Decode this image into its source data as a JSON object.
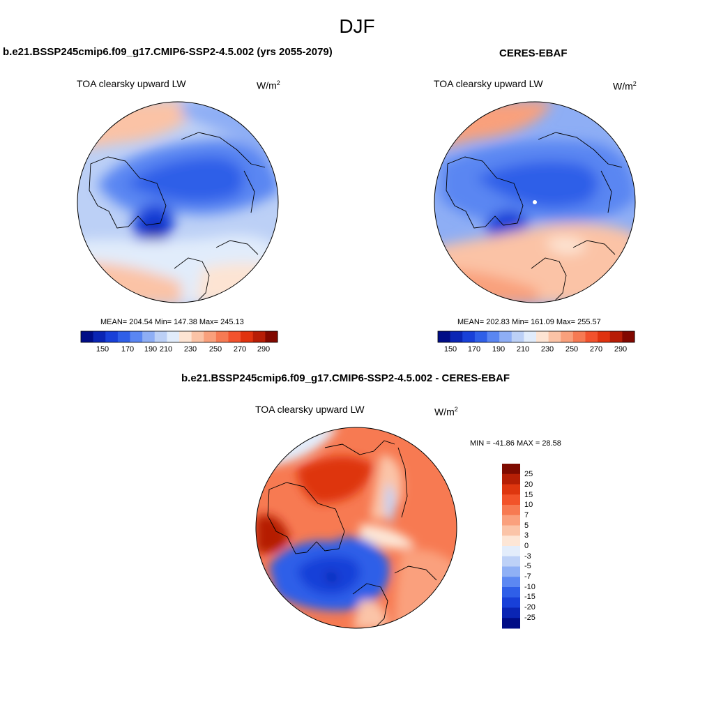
{
  "title": "DJF",
  "panels": {
    "model": {
      "title": "b.e21.BSSP245cmip6.f09_g17.CMIP6-SSP2-4.5.002 (yrs 2055-2079)",
      "variable": "TOA clearsky upward LW",
      "units": "W/m",
      "units_sup": "2",
      "stats": "MEAN= 204.54  Min= 147.38  Max= 245.13"
    },
    "obs": {
      "title": "CERES-EBAF",
      "variable": "TOA clearsky upward LW",
      "units": "W/m",
      "units_sup": "2",
      "stats": "MEAN= 202.83  Min= 161.09  Max= 255.57"
    },
    "diff": {
      "title": "b.e21.BSSP245cmip6.f09_g17.CMIP6-SSP2-4.5.002 - CERES-EBAF",
      "variable": "TOA clearsky upward LW",
      "units": "W/m",
      "units_sup": "2",
      "stats": "MIN = -41.86 MAX =  28.58"
    }
  },
  "colorbar_abs": {
    "labels": [
      "150",
      "170",
      "190",
      "210",
      "230",
      "250",
      "270",
      "290"
    ],
    "colors": [
      "#000d86",
      "#0a25b4",
      "#1840d8",
      "#2f5fe8",
      "#5a86f2",
      "#8eaef5",
      "#bcd0f6",
      "#e1ecfb",
      "#fde4d3",
      "#fbc3a6",
      "#f9a07c",
      "#f67a53",
      "#f2522d",
      "#e0330f",
      "#b71d06",
      "#810800"
    ]
  },
  "colorbar_diff": {
    "labels": [
      "25",
      "20",
      "15",
      "10",
      "7",
      "5",
      "3",
      "0",
      "-3",
      "-5",
      "-7",
      "-10",
      "-15",
      "-20",
      "-25"
    ],
    "colors": [
      "#7e0b00",
      "#b51f05",
      "#de360f",
      "#f2532a",
      "#f77a52",
      "#faa07d",
      "#fbc4a8",
      "#fde6d6",
      "#e3edfb",
      "#bdd1f7",
      "#8fb0f5",
      "#5c88f2",
      "#2f5fe8",
      "#1840d8",
      "#0a25b4",
      "#000d86"
    ]
  }
}
